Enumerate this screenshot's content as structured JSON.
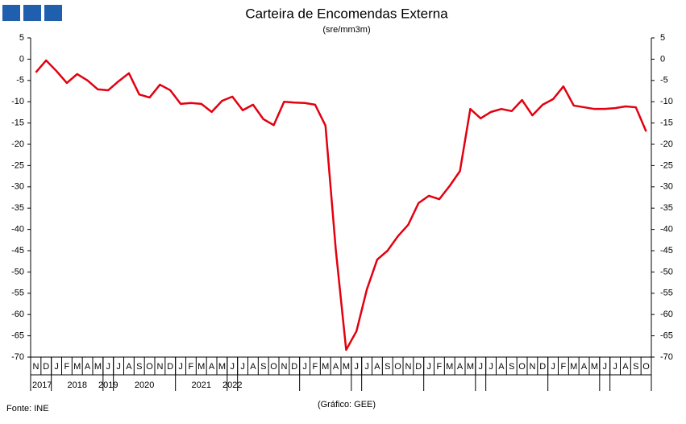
{
  "chart_data": {
    "type": "line",
    "title": "Carteira de Encomendas Externa",
    "subtitle": "(sre/mm3m)",
    "source": "Fonte: INE",
    "credit": "(Gráfico: GEE)",
    "categories": [
      "N",
      "D",
      "J",
      "F",
      "M",
      "A",
      "M",
      "J",
      "J",
      "A",
      "S",
      "O",
      "N",
      "D",
      "J",
      "F",
      "M",
      "A",
      "M",
      "J",
      "J",
      "A",
      "S",
      "O",
      "N",
      "D",
      "J",
      "F",
      "M",
      "A",
      "M",
      "J",
      "J",
      "A",
      "S",
      "O",
      "N",
      "D",
      "J",
      "F",
      "M",
      "A",
      "M",
      "J",
      "J",
      "A",
      "S",
      "O",
      "N",
      "D",
      "J",
      "F",
      "M",
      "A",
      "M",
      "J",
      "J",
      "A",
      "S",
      "O"
    ],
    "years": [
      "2017",
      "2018",
      "2019",
      "2020",
      "2021",
      "2022"
    ],
    "values": [
      -3.1,
      -0.3,
      -2.8,
      -5.6,
      -3.5,
      -5.0,
      -7.1,
      -7.3,
      -5.2,
      -3.3,
      -8.3,
      -9.0,
      -6.0,
      -7.3,
      -10.5,
      -10.3,
      -10.5,
      -12.4,
      -9.8,
      -8.8,
      -12.0,
      -10.7,
      -14.1,
      -15.5,
      -10.0,
      -10.2,
      -10.3,
      -10.7,
      -15.6,
      -44.8,
      -68.3,
      -63.9,
      -54.1,
      -47.1,
      -45.0,
      -41.6,
      -38.9,
      -33.8,
      -32.1,
      -32.9,
      -29.8,
      -26.3,
      -11.7,
      -13.9,
      -12.4,
      -11.7,
      -12.2,
      -9.6,
      -13.2,
      -10.7,
      -9.4,
      -6.4,
      -10.9,
      -11.3,
      -11.7,
      -11.7,
      -11.5,
      -11.1,
      -11.3,
      -17.0
    ],
    "color": "#e3000f",
    "ylim": [
      5,
      -70
    ],
    "yticks": [
      5,
      0,
      -5,
      -10,
      -15,
      -20,
      -25,
      -30,
      -35,
      -40,
      -45,
      -50,
      -55,
      -60,
      -65,
      -70
    ],
    "grid": false
  }
}
